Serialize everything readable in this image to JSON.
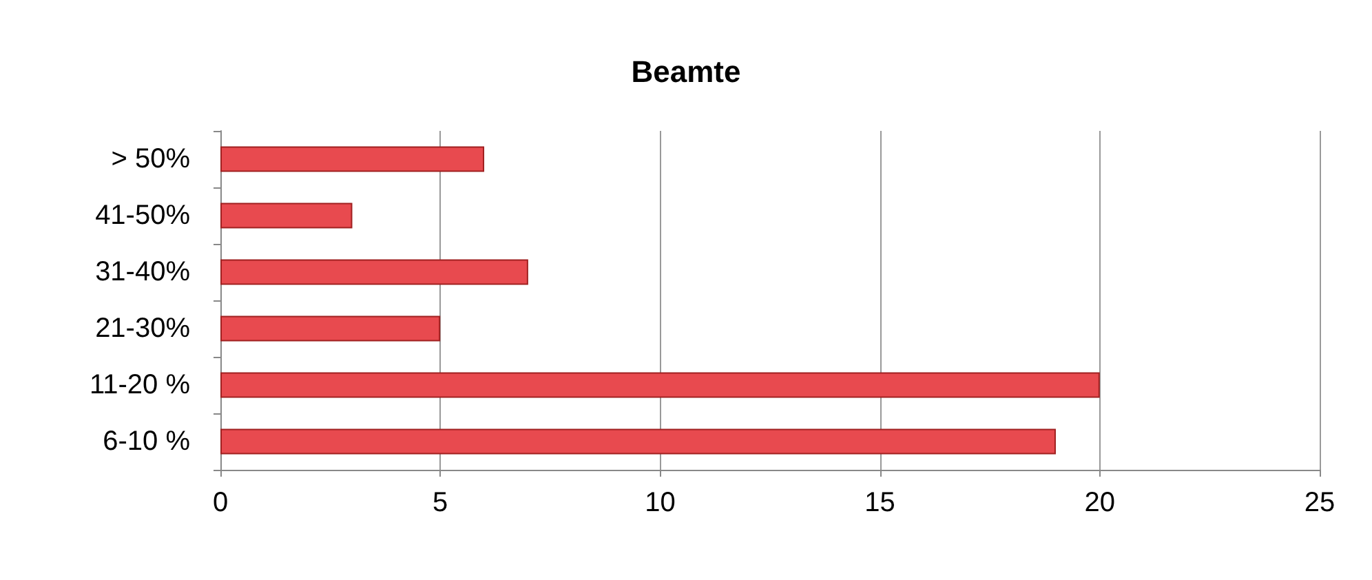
{
  "chart_data": {
    "type": "bar",
    "title": "Beamte",
    "orientation": "horizontal",
    "categories": [
      "> 50%",
      "41-50%",
      "31-40%",
      "21-30%",
      "11-20 %",
      "6-10 %"
    ],
    "values": [
      6,
      3,
      7,
      5,
      20,
      19
    ],
    "color": "#e84a4f",
    "xlim": [
      0,
      25
    ],
    "xticks": [
      0,
      5,
      10,
      15,
      20,
      25
    ],
    "grid": "x"
  }
}
